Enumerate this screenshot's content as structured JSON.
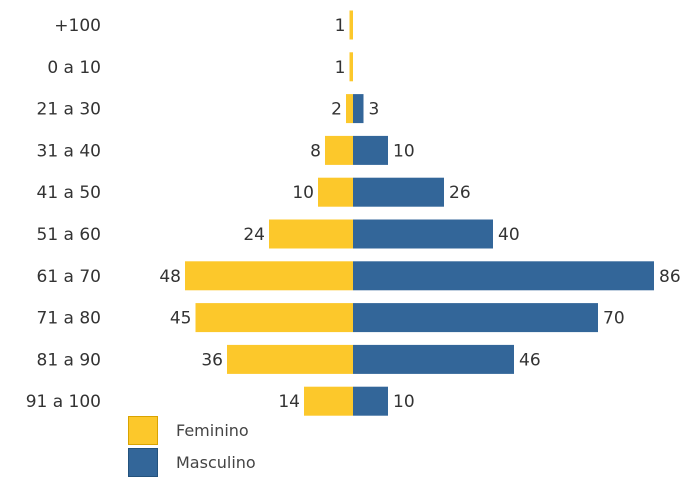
{
  "chart_data": {
    "type": "bar",
    "orientation": "horizontal-diverging",
    "categories": [
      "+100",
      "0 a 10",
      "21 a 30",
      "31 a 40",
      "41 a 50",
      "51 a 60",
      "61 a 70",
      "71 a 80",
      "81 a 90",
      "91 a 100"
    ],
    "series": [
      {
        "name": "Feminino",
        "color": "#FCC82B",
        "side": "left",
        "values": [
          1,
          1,
          2,
          8,
          10,
          24,
          48,
          45,
          36,
          14
        ]
      },
      {
        "name": "Masculino",
        "color": "#336699",
        "side": "right",
        "values": [
          null,
          null,
          3,
          10,
          26,
          40,
          86,
          70,
          46,
          10
        ]
      }
    ],
    "legend_position": "bottom-left",
    "grid": false
  }
}
